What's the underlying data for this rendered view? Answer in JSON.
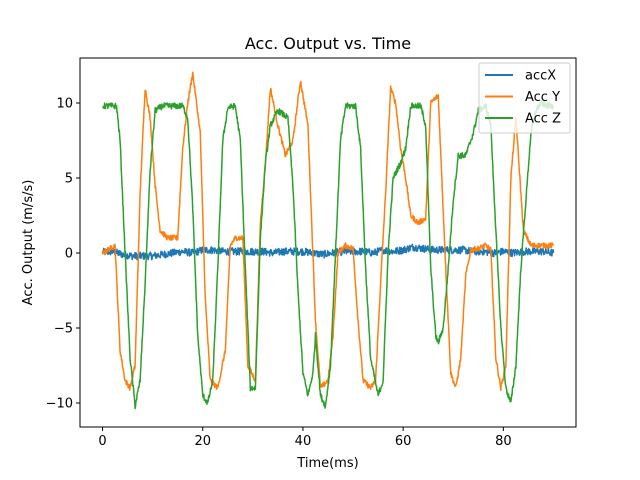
{
  "chart_data": {
    "type": "line",
    "title": "Acc. Output vs. Time",
    "xlabel": "Time(ms)",
    "ylabel": "Acc. Output (m/s/s)",
    "xlim": [
      -4.5,
      94.5
    ],
    "ylim": [
      -11.6,
      13.0
    ],
    "xticks": [
      0,
      20,
      40,
      60,
      80
    ],
    "yticks": [
      -10,
      -5,
      0,
      5,
      10
    ],
    "xtick_labels": [
      "0",
      "20",
      "40",
      "60",
      "80"
    ],
    "ytick_labels": [
      "−10",
      "−5",
      "0",
      "5",
      "10"
    ],
    "grid": false,
    "legend_position": "top-right",
    "series": [
      {
        "name": "accX",
        "color": "#1f77b4",
        "noise": 0.25,
        "points": [
          [
            0,
            0.05
          ],
          [
            2,
            0.1
          ],
          [
            4,
            -0.1
          ],
          [
            6,
            -0.2
          ],
          [
            8,
            -0.2
          ],
          [
            10,
            -0.2
          ],
          [
            12,
            -0.1
          ],
          [
            14,
            0.0
          ],
          [
            16,
            0.1
          ],
          [
            18,
            0.0
          ],
          [
            20,
            0.2
          ],
          [
            22,
            0.2
          ],
          [
            24,
            0.1
          ],
          [
            26,
            0.1
          ],
          [
            28,
            0.1
          ],
          [
            30,
            0.1
          ],
          [
            32,
            0.1
          ],
          [
            34,
            0.0
          ],
          [
            36,
            0.1
          ],
          [
            38,
            0.1
          ],
          [
            40,
            0.1
          ],
          [
            42,
            0.0
          ],
          [
            44,
            -0.1
          ],
          [
            46,
            0.0
          ],
          [
            48,
            0.1
          ],
          [
            50,
            0.1
          ],
          [
            52,
            0.1
          ],
          [
            54,
            0.0
          ],
          [
            56,
            0.2
          ],
          [
            58,
            0.1
          ],
          [
            60,
            0.2
          ],
          [
            62,
            0.4
          ],
          [
            64,
            0.3
          ],
          [
            66,
            0.2
          ],
          [
            68,
            0.2
          ],
          [
            70,
            0.2
          ],
          [
            72,
            0.2
          ],
          [
            74,
            0.1
          ],
          [
            76,
            0.1
          ],
          [
            78,
            0.0
          ],
          [
            80,
            0.1
          ],
          [
            82,
            0.0
          ],
          [
            84,
            0.1
          ],
          [
            86,
            0.1
          ],
          [
            88,
            0.1
          ],
          [
            90,
            0.0
          ]
        ]
      },
      {
        "name": "Acc Y",
        "color": "#ff7f0e",
        "noise": 0.18,
        "points": [
          [
            0,
            0.0
          ],
          [
            1.5,
            0.3
          ],
          [
            2.5,
            0.5
          ],
          [
            3.5,
            -6.5
          ],
          [
            4.5,
            -8.5
          ],
          [
            5.5,
            -9.0
          ],
          [
            6.5,
            -7.5
          ],
          [
            7.5,
            4.0
          ],
          [
            8.5,
            11.0
          ],
          [
            9.5,
            9.0
          ],
          [
            10.5,
            4.5
          ],
          [
            11.5,
            1.5
          ],
          [
            13.0,
            1.0
          ],
          [
            15.0,
            1.0
          ],
          [
            16.0,
            7.0
          ],
          [
            17.0,
            10.0
          ],
          [
            18.0,
            12.0
          ],
          [
            19.5,
            8.0
          ],
          [
            20.5,
            -3.0
          ],
          [
            21.5,
            -8.5
          ],
          [
            23.0,
            -9.0
          ],
          [
            24.5,
            -6.5
          ],
          [
            25.5,
            0.5
          ],
          [
            26.5,
            1.0
          ],
          [
            28.0,
            1.0
          ],
          [
            29.0,
            -7.5
          ],
          [
            30.5,
            -8.5
          ],
          [
            31.5,
            2.0
          ],
          [
            32.5,
            6.0
          ],
          [
            33.5,
            11.0
          ],
          [
            35.0,
            8.5
          ],
          [
            36.5,
            6.5
          ],
          [
            38.0,
            7.5
          ],
          [
            39.5,
            11.5
          ],
          [
            41.0,
            8.5
          ],
          [
            42.5,
            -4.5
          ],
          [
            43.5,
            -9.0
          ],
          [
            45.0,
            -8.5
          ],
          [
            46.0,
            -5.5
          ],
          [
            47.0,
            0.0
          ],
          [
            48.5,
            0.5
          ],
          [
            50.0,
            0.3
          ],
          [
            51.0,
            -4.5
          ],
          [
            52.0,
            -8.5
          ],
          [
            53.5,
            -9.0
          ],
          [
            54.5,
            -8.5
          ],
          [
            55.5,
            -2.0
          ],
          [
            56.5,
            4.0
          ],
          [
            57.5,
            11.0
          ],
          [
            58.5,
            10.0
          ],
          [
            59.5,
            7.0
          ],
          [
            60.5,
            5.0
          ],
          [
            61.5,
            2.5
          ],
          [
            63.0,
            2.0
          ],
          [
            64.5,
            2.3
          ],
          [
            65.5,
            10.0
          ],
          [
            67.0,
            10.5
          ],
          [
            68.5,
            -1.0
          ],
          [
            69.5,
            -8.0
          ],
          [
            70.5,
            -9.0
          ],
          [
            71.5,
            -7.0
          ],
          [
            72.5,
            -1.5
          ],
          [
            73.5,
            0.2
          ],
          [
            75.0,
            0.3
          ],
          [
            76.5,
            0.5
          ],
          [
            77.5,
            0.2
          ],
          [
            78.5,
            -7.0
          ],
          [
            79.5,
            -9.0
          ],
          [
            80.5,
            -7.5
          ],
          [
            81.5,
            5.0
          ],
          [
            82.5,
            9.0
          ],
          [
            84.0,
            1.5
          ],
          [
            85.5,
            0.5
          ],
          [
            86.5,
            0.5
          ],
          [
            88.0,
            0.5
          ],
          [
            90.0,
            0.5
          ]
        ]
      },
      {
        "name": "Acc Z",
        "color": "#2ca02c",
        "noise": 0.2,
        "points": [
          [
            0,
            9.8
          ],
          [
            2.0,
            9.8
          ],
          [
            2.8,
            9.8
          ],
          [
            3.5,
            7.5
          ],
          [
            4.5,
            0.0
          ],
          [
            5.5,
            -7.0
          ],
          [
            6.5,
            -10.2
          ],
          [
            7.5,
            -8.5
          ],
          [
            8.5,
            -2.0
          ],
          [
            9.5,
            5.5
          ],
          [
            10.5,
            9.5
          ],
          [
            12.0,
            9.8
          ],
          [
            14.0,
            9.8
          ],
          [
            16.0,
            9.8
          ],
          [
            17.0,
            9.0
          ],
          [
            18.0,
            3.0
          ],
          [
            19.0,
            -5.5
          ],
          [
            20.0,
            -9.5
          ],
          [
            21.0,
            -10.0
          ],
          [
            22.0,
            -8.5
          ],
          [
            23.0,
            -1.0
          ],
          [
            24.0,
            7.5
          ],
          [
            25.0,
            9.7
          ],
          [
            26.5,
            9.8
          ],
          [
            27.5,
            7.5
          ],
          [
            28.5,
            -1.0
          ],
          [
            29.5,
            -9.0
          ],
          [
            30.5,
            -9.0
          ],
          [
            31.5,
            1.0
          ],
          [
            32.5,
            6.0
          ],
          [
            33.5,
            8.5
          ],
          [
            35.0,
            9.5
          ],
          [
            37.0,
            9.0
          ],
          [
            38.0,
            4.5
          ],
          [
            39.0,
            -2.5
          ],
          [
            40.0,
            -8.0
          ],
          [
            41.0,
            -9.5
          ],
          [
            42.0,
            -8.0
          ],
          [
            42.5,
            -5.5
          ],
          [
            43.5,
            -9.5
          ],
          [
            44.5,
            -10.2
          ],
          [
            45.5,
            -7.5
          ],
          [
            46.5,
            0.0
          ],
          [
            47.5,
            7.5
          ],
          [
            48.5,
            9.8
          ],
          [
            50.5,
            9.8
          ],
          [
            51.5,
            7.0
          ],
          [
            52.5,
            -1.0
          ],
          [
            53.5,
            -7.0
          ],
          [
            55.0,
            -9.5
          ],
          [
            56.0,
            -8.5
          ],
          [
            57.0,
            0.0
          ],
          [
            58.0,
            5.0
          ],
          [
            59.5,
            6.0
          ],
          [
            60.5,
            7.0
          ],
          [
            61.5,
            9.8
          ],
          [
            63.5,
            9.8
          ],
          [
            64.5,
            8.5
          ],
          [
            65.5,
            -1.0
          ],
          [
            66.5,
            -5.5
          ],
          [
            67.0,
            -6.0
          ],
          [
            68.0,
            -5.0
          ],
          [
            69.0,
            -1.0
          ],
          [
            70.0,
            3.5
          ],
          [
            71.0,
            6.5
          ],
          [
            72.5,
            6.5
          ],
          [
            74.0,
            8.0
          ],
          [
            75.0,
            9.5
          ],
          [
            76.5,
            9.8
          ],
          [
            77.5,
            8.5
          ],
          [
            78.5,
            1.5
          ],
          [
            79.5,
            -5.0
          ],
          [
            80.5,
            -9.0
          ],
          [
            81.5,
            -10.0
          ],
          [
            82.5,
            -7.5
          ],
          [
            83.5,
            -1.0
          ],
          [
            84.5,
            3.5
          ],
          [
            85.5,
            8.0
          ],
          [
            86.5,
            9.5
          ],
          [
            87.5,
            10.0
          ],
          [
            89.0,
            9.8
          ],
          [
            90.0,
            9.8
          ]
        ]
      }
    ]
  }
}
